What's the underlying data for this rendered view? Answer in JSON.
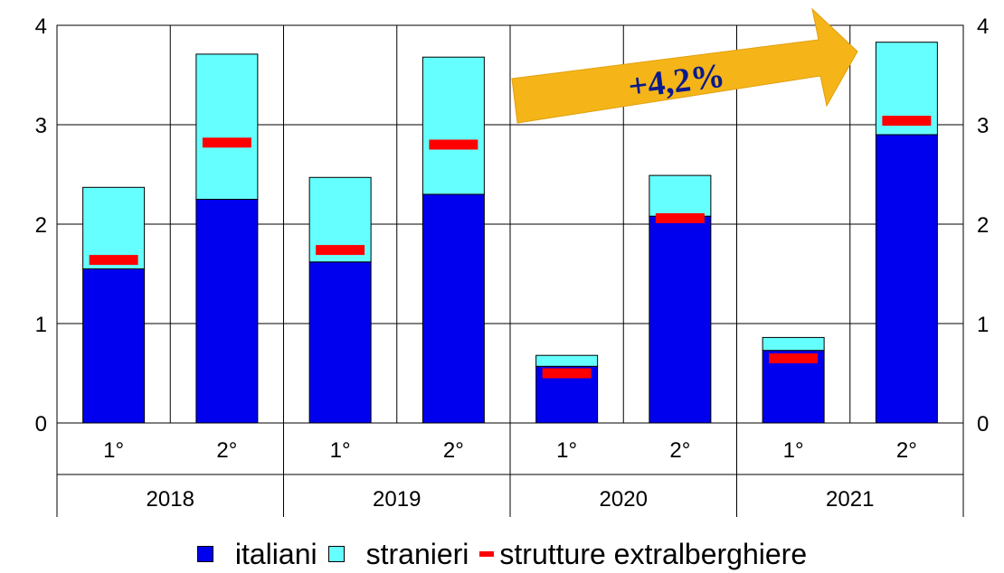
{
  "chart_data": {
    "type": "bar",
    "stacked": true,
    "groups": [
      "2018",
      "2019",
      "2020",
      "2021"
    ],
    "categories": [
      "1°",
      "2°",
      "1°",
      "2°",
      "1°",
      "2°",
      "1°",
      "2°"
    ],
    "series": [
      {
        "name": "italiani",
        "color": "#0000ee",
        "values": [
          1.55,
          2.25,
          1.62,
          2.3,
          0.57,
          2.08,
          0.73,
          2.9
        ]
      },
      {
        "name": "stranieri",
        "color": "#66ffff",
        "values": [
          0.82,
          1.46,
          0.85,
          1.38,
          0.11,
          0.41,
          0.13,
          0.93
        ]
      }
    ],
    "markers": {
      "name": "strutture extralberghiere",
      "color": "#ff0000",
      "values": [
        1.64,
        2.82,
        1.74,
        2.8,
        0.5,
        2.06,
        0.65,
        3.04
      ]
    },
    "ylim": [
      0,
      4
    ],
    "yticks": [
      0,
      1,
      2,
      3,
      4
    ],
    "grid": true,
    "annotation": {
      "text": "+4,2%",
      "color": "#f5b518"
    },
    "legend_position": "bottom"
  }
}
